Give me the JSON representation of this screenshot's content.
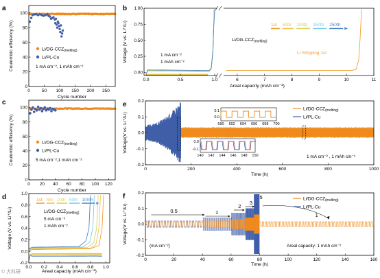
{
  "colors": {
    "orange": "#f08a1c",
    "blue": "#3f5ea8",
    "green": "#3c8d43",
    "c_1st": "#f0a030",
    "c_50th": "#f3c24a",
    "c_100th": "#d7d35a",
    "c_150th": "#7ccde6",
    "c_250th": "#4f86c6"
  },
  "watermark": "© 大科研",
  "chart_data": [
    {
      "panel": "a",
      "type": "scatter",
      "xlabel": "Cycle number",
      "ylabel": "Coulombic efficiency (%)",
      "xlim": [
        0,
        280
      ],
      "ylim": [
        0,
        110
      ],
      "xticks": [
        0,
        50,
        100,
        150,
        200,
        250
      ],
      "yticks": [
        0,
        20,
        40,
        60,
        80,
        100
      ],
      "series": [
        {
          "name": "Li/DG-CCZ",
          "sub": "(melting)",
          "color": "orange",
          "x_start": 1,
          "x_end": 280,
          "y_base": 98.5
        },
        {
          "name": "Li/PL-Cu",
          "color": "blue",
          "points": [
            [
              3,
              88
            ],
            [
              8,
              93
            ],
            [
              12,
              97
            ],
            [
              18,
              98
            ],
            [
              24,
              98
            ],
            [
              30,
              97
            ],
            [
              36,
              98
            ],
            [
              42,
              97
            ],
            [
              48,
              96
            ],
            [
              54,
              97
            ],
            [
              60,
              98
            ],
            [
              64,
              96
            ],
            [
              68,
              95
            ],
            [
              72,
              92
            ],
            [
              76,
              93
            ],
            [
              80,
              94
            ],
            [
              84,
              91
            ],
            [
              86,
              86
            ],
            [
              88,
              92
            ],
            [
              90,
              84
            ],
            [
              92,
              80
            ],
            [
              94,
              88
            ],
            [
              96,
              86
            ],
            [
              98,
              82
            ],
            [
              100,
              78
            ],
            [
              102,
              74
            ],
            [
              104,
              83
            ],
            [
              106,
              68
            ],
            [
              108,
              72
            ],
            [
              110,
              76
            ]
          ]
        }
      ],
      "annotation": "1 mA cm⁻², 1 mAh cm⁻²"
    },
    {
      "panel": "b",
      "type": "line",
      "xlabel": "Areal capacity (mAh cm⁻²)",
      "ylabel": "Voltage (V vs. Li⁺/Li)",
      "xlim": [
        0,
        11
      ],
      "ylim": [
        -0.05,
        1.0
      ],
      "xticks": [
        0.0,
        0.5,
        1.0,
        6,
        7,
        8,
        9,
        10,
        11
      ],
      "xtick_labels": [
        "0.0",
        "0.5",
        "1.0",
        "6",
        "7",
        "8",
        "9",
        "10",
        "11"
      ],
      "yticks": [
        0.0,
        0.25,
        0.5,
        0.75,
        1.0
      ],
      "ytick_labels": [
        "0.00",
        "0.25",
        "0.50",
        "0.75",
        "1.00"
      ],
      "legend_cycles": [
        "1st",
        "50th",
        "100th",
        "150th",
        "250th"
      ],
      "label_main": "Li/DG-CCZ",
      "label_main_sub": "(melting)",
      "annotation_rate": [
        "1 mA cm⁻²",
        "1 mAh cm⁻²"
      ],
      "annotation_strip": "Li Stripping,1st",
      "series": [
        {
          "name": "1st",
          "color": "c_1st",
          "stripping_end": 10.5
        },
        {
          "name": "50th",
          "color": "c_50th"
        },
        {
          "name": "100th",
          "color": "c_100th"
        },
        {
          "name": "150th",
          "color": "c_150th"
        },
        {
          "name": "250th",
          "color": "c_250th"
        }
      ]
    },
    {
      "panel": "c",
      "type": "scatter",
      "xlabel": "Cycle number",
      "ylabel": "Coulombic efficiency (%)",
      "xlim": [
        0,
        130
      ],
      "ylim": [
        0,
        110
      ],
      "xticks": [
        0,
        20,
        40,
        60,
        80,
        100,
        120
      ],
      "yticks": [
        0,
        20,
        40,
        60,
        80,
        100
      ],
      "series": [
        {
          "name": "Li/DG-CCZ",
          "sub": "(melting)",
          "color": "orange",
          "x_start": 1,
          "x_end": 130,
          "y_base": 98.5
        },
        {
          "name": "Li/PL-Cu",
          "color": "blue",
          "points": [
            [
              2,
              92
            ],
            [
              4,
              97
            ],
            [
              6,
              100
            ],
            [
              8,
              94
            ],
            [
              10,
              98
            ],
            [
              12,
              96
            ],
            [
              14,
              101
            ],
            [
              16,
              97
            ],
            [
              18,
              99
            ],
            [
              20,
              95
            ],
            [
              22,
              98
            ],
            [
              24,
              100
            ],
            [
              26,
              96
            ],
            [
              28,
              98
            ],
            [
              30,
              97
            ],
            [
              32,
              99
            ],
            [
              34,
              95
            ],
            [
              36,
              98
            ],
            [
              38,
              97
            ],
            [
              40,
              96
            ]
          ]
        }
      ],
      "annotation": "5 mA cm⁻²,1 mAh cm⁻²"
    },
    {
      "panel": "d",
      "type": "line",
      "xlabel": "Areal capacity (mAh cm⁻²)",
      "ylabel": "Voltage (V vs. Li⁺/Li)",
      "xlim": [
        0,
        1.05
      ],
      "ylim": [
        -0.2,
        1.0
      ],
      "xticks": [
        0.0,
        0.2,
        0.4,
        0.6,
        0.8,
        1.0
      ],
      "xtick_labels": [
        "0.0",
        "0.2",
        "0.4",
        "0.6",
        "0.8",
        "1.0"
      ],
      "yticks": [
        -0.2,
        0.0,
        0.2,
        0.4,
        0.6,
        0.8,
        1.0
      ],
      "ytick_labels": [
        "-0.2",
        "0.0",
        "0.2",
        "0.4",
        "0.6",
        "0.8",
        "1.0"
      ],
      "legend_cycles": [
        "1st",
        "5th",
        "10th",
        "50th",
        "100th"
      ],
      "label_main": "Li/DG-CCZ",
      "label_main_sub": "(melting)",
      "annotation_rate": [
        "5 mA cm⁻²",
        "1 mAh cm⁻²"
      ],
      "series": [
        {
          "name": "1st",
          "color": "c_1st",
          "end": 0.97
        },
        {
          "name": "5th",
          "color": "c_50th",
          "end": 0.93
        },
        {
          "name": "10th",
          "color": "c_100th",
          "end": 0.9
        },
        {
          "name": "50th",
          "color": "c_150th",
          "end": 0.85
        },
        {
          "name": "100th",
          "color": "c_250th",
          "end": 0.8
        }
      ]
    },
    {
      "panel": "e",
      "type": "line",
      "xlabel": "Time (h)",
      "ylabel": "Voltage(V vs. Li⁺/Li)",
      "xlim": [
        0,
        1000
      ],
      "ylim": [
        -0.2,
        0.2
      ],
      "xticks": [
        0,
        200,
        400,
        600,
        800,
        1000
      ],
      "yticks": [
        -0.2,
        -0.1,
        0.0,
        0.1,
        0.2
      ],
      "ytick_labels": [
        "-0.2",
        "-0.1",
        "0.0",
        "0.1",
        "0.2"
      ],
      "series": [
        {
          "name": "Li/DG-CCZ",
          "sub": "(melting)",
          "color": "orange",
          "amplitude": 0.028,
          "x_end": 1000
        },
        {
          "name": "Li/PL-Cu",
          "color": "blue",
          "amplitude_start": 0.05,
          "amplitude_end": 0.2,
          "x_end": 155
        }
      ],
      "inset_top": {
        "xticks": [
          690,
          692,
          694,
          696,
          698,
          700
        ],
        "yticks": [
          "0.0",
          "0.1"
        ]
      },
      "inset_bottom": {
        "xticks": [
          140,
          142,
          144,
          146,
          148,
          150
        ],
        "yticks": [
          "-0.1",
          "0.0"
        ]
      },
      "annotation": "1 mA cm⁻² , 1 mAh cm⁻²"
    },
    {
      "panel": "f",
      "type": "line",
      "xlabel": "Time (h)",
      "ylabel": "Voltage(V vs. Li⁺/Li)",
      "xlim": [
        0,
        160
      ],
      "ylim": [
        -0.2,
        0.2
      ],
      "xticks": [
        0,
        20,
        40,
        60,
        80,
        100,
        120,
        140,
        160
      ],
      "yticks": [
        -0.2,
        -0.1,
        0.0,
        0.1,
        0.2
      ],
      "ytick_labels": [
        "-0.2",
        "-0.1",
        "0.0",
        "0.1",
        "0.2"
      ],
      "rate_labels": [
        {
          "text": "0.5",
          "x": 20
        },
        {
          "text": "1",
          "x": 50
        },
        {
          "text": "2",
          "x": 66
        },
        {
          "text": "3",
          "x": 74
        },
        {
          "text": "5",
          "x": 81
        },
        {
          "text": "1",
          "x": 120
        }
      ],
      "series": [
        {
          "name": "Li/DG-CCZ",
          "sub": "(melting)",
          "color": "orange"
        },
        {
          "name": "Li/PL-Cu",
          "color": "blue"
        }
      ],
      "annotation_unit": "(mA cm⁻²)",
      "annotation_area": "Areal capacity: 1 mAh cm⁻²"
    }
  ]
}
